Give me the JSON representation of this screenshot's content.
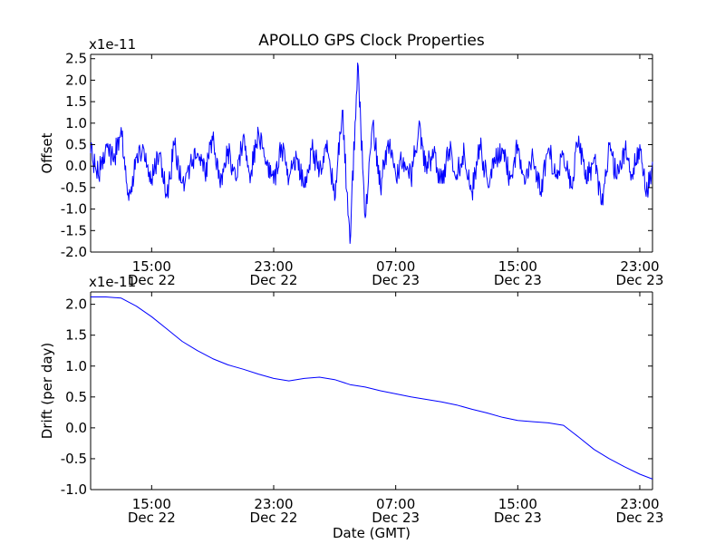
{
  "chart_data": [
    {
      "type": "line",
      "title": "APOLLO GPS Clock Properties",
      "ylabel": "Offset",
      "xlabel": "",
      "y_multiplier": "x1e-11",
      "ylim": [
        -2.0,
        2.6
      ],
      "yticks": [
        {
          "v": -2.0,
          "label": "-2.0"
        },
        {
          "v": -1.5,
          "label": "-1.5"
        },
        {
          "v": -1.0,
          "label": "-1.0"
        },
        {
          "v": -0.5,
          "label": "-0.5"
        },
        {
          "v": 0.0,
          "label": "0.0"
        },
        {
          "v": 0.5,
          "label": "0.5"
        },
        {
          "v": 1.0,
          "label": "1.0"
        },
        {
          "v": 1.5,
          "label": "1.5"
        },
        {
          "v": 2.0,
          "label": "2.0"
        },
        {
          "v": 2.5,
          "label": "2.5"
        }
      ],
      "xlim": [
        "2012-12-22 11:00",
        "2012-12-23 23:50"
      ],
      "xticks": [
        {
          "t": "2012-12-22 15:00",
          "time": "15:00",
          "date": "Dec 22"
        },
        {
          "t": "2012-12-22 23:00",
          "time": "23:00",
          "date": "Dec 22"
        },
        {
          "t": "2012-12-23 07:00",
          "time": "07:00",
          "date": "Dec 23"
        },
        {
          "t": "2012-12-23 15:00",
          "time": "15:00",
          "date": "Dec 23"
        },
        {
          "t": "2012-12-23 23:00",
          "time": "23:00",
          "date": "Dec 23"
        }
      ],
      "grid": false,
      "color": "#0000ff",
      "series": [
        {
          "x": [
            "2012-12-22 11:00",
            "2012-12-22 11:30",
            "2012-12-22 12:00",
            "2012-12-22 12:30",
            "2012-12-22 13:00",
            "2012-12-22 13:30",
            "2012-12-22 14:00",
            "2012-12-22 14:30",
            "2012-12-22 15:00",
            "2012-12-22 15:30",
            "2012-12-22 16:00",
            "2012-12-22 16:30",
            "2012-12-22 17:00",
            "2012-12-22 17:30",
            "2012-12-22 18:00",
            "2012-12-22 18:30",
            "2012-12-22 19:00",
            "2012-12-22 19:30",
            "2012-12-22 20:00",
            "2012-12-22 20:30",
            "2012-12-22 21:00",
            "2012-12-22 21:30",
            "2012-12-22 22:00",
            "2012-12-22 22:30",
            "2012-12-22 23:00",
            "2012-12-22 23:30",
            "2012-12-23 00:00",
            "2012-12-23 00:30",
            "2012-12-23 01:00",
            "2012-12-23 01:30",
            "2012-12-23 02:00",
            "2012-12-23 02:30",
            "2012-12-23 03:00",
            "2012-12-23 03:30",
            "2012-12-23 04:00",
            "2012-12-23 04:30",
            "2012-12-23 05:00",
            "2012-12-23 05:30",
            "2012-12-23 06:00",
            "2012-12-23 06:30",
            "2012-12-23 07:00",
            "2012-12-23 07:30",
            "2012-12-23 08:00",
            "2012-12-23 08:30",
            "2012-12-23 09:00",
            "2012-12-23 09:30",
            "2012-12-23 10:00",
            "2012-12-23 10:30",
            "2012-12-23 11:00",
            "2012-12-23 11:30",
            "2012-12-23 12:00",
            "2012-12-23 12:30",
            "2012-12-23 13:00",
            "2012-12-23 13:30",
            "2012-12-23 14:00",
            "2012-12-23 14:30",
            "2012-12-23 15:00",
            "2012-12-23 15:30",
            "2012-12-23 16:00",
            "2012-12-23 16:30",
            "2012-12-23 17:00",
            "2012-12-23 17:30",
            "2012-12-23 18:00",
            "2012-12-23 18:30",
            "2012-12-23 19:00",
            "2012-12-23 19:30",
            "2012-12-23 20:00",
            "2012-12-23 20:30",
            "2012-12-23 21:00",
            "2012-12-23 21:30",
            "2012-12-23 22:00",
            "2012-12-23 22:30",
            "2012-12-23 23:00",
            "2012-12-23 23:30",
            "2012-12-23 23:50"
          ],
          "values": [
            0.3,
            -0.2,
            0.5,
            0.1,
            0.9,
            -0.8,
            0.2,
            0.4,
            -0.3,
            0.3,
            -0.7,
            0.5,
            -0.4,
            0.0,
            0.3,
            -0.2,
            0.6,
            -0.5,
            0.4,
            -0.3,
            0.7,
            -0.2,
            0.8,
            0.1,
            -0.4,
            0.5,
            -0.3,
            0.2,
            -0.5,
            0.4,
            -0.1,
            0.6,
            -0.8,
            1.3,
            -1.8,
            2.4,
            -1.2,
            1.0,
            -0.5,
            0.6,
            -0.2,
            0.2,
            -0.3,
            0.9,
            0.0,
            0.3,
            -0.4,
            0.4,
            -0.2,
            0.3,
            -0.6,
            0.5,
            -0.3,
            0.1,
            0.4,
            -0.3,
            0.5,
            -0.4,
            0.2,
            -0.6,
            0.4,
            -0.2,
            0.3,
            -0.5,
            0.7,
            -0.4,
            0.2,
            -0.9,
            0.5,
            -0.3,
            0.4,
            -0.2,
            0.5,
            -0.6,
            0.1
          ]
        }
      ]
    },
    {
      "type": "line",
      "title": "",
      "ylabel": "Drift (per day)",
      "xlabel": "Date (GMT)",
      "y_multiplier": "x1e-11",
      "ylim": [
        -1.0,
        2.2
      ],
      "yticks": [
        {
          "v": -1.0,
          "label": "-1.0"
        },
        {
          "v": -0.5,
          "label": "-0.5"
        },
        {
          "v": 0.0,
          "label": "0.0"
        },
        {
          "v": 0.5,
          "label": "0.5"
        },
        {
          "v": 1.0,
          "label": "1.0"
        },
        {
          "v": 1.5,
          "label": "1.5"
        },
        {
          "v": 2.0,
          "label": "2.0"
        }
      ],
      "xlim": [
        "2012-12-22 11:00",
        "2012-12-23 23:50"
      ],
      "xticks": [
        {
          "t": "2012-12-22 15:00",
          "time": "15:00",
          "date": "Dec 22"
        },
        {
          "t": "2012-12-22 23:00",
          "time": "23:00",
          "date": "Dec 22"
        },
        {
          "t": "2012-12-23 07:00",
          "time": "07:00",
          "date": "Dec 23"
        },
        {
          "t": "2012-12-23 15:00",
          "time": "15:00",
          "date": "Dec 23"
        },
        {
          "t": "2012-12-23 23:00",
          "time": "23:00",
          "date": "Dec 23"
        }
      ],
      "grid": false,
      "color": "#0000ff",
      "series": [
        {
          "x": [
            "2012-12-22 11:00",
            "2012-12-22 12:00",
            "2012-12-22 13:00",
            "2012-12-22 14:00",
            "2012-12-22 15:00",
            "2012-12-22 16:00",
            "2012-12-22 17:00",
            "2012-12-22 18:00",
            "2012-12-22 19:00",
            "2012-12-22 20:00",
            "2012-12-22 21:00",
            "2012-12-22 22:00",
            "2012-12-22 23:00",
            "2012-12-23 00:00",
            "2012-12-23 01:00",
            "2012-12-23 02:00",
            "2012-12-23 03:00",
            "2012-12-23 04:00",
            "2012-12-23 05:00",
            "2012-12-23 06:00",
            "2012-12-23 07:00",
            "2012-12-23 08:00",
            "2012-12-23 09:00",
            "2012-12-23 10:00",
            "2012-12-23 11:00",
            "2012-12-23 12:00",
            "2012-12-23 13:00",
            "2012-12-23 14:00",
            "2012-12-23 15:00",
            "2012-12-23 16:00",
            "2012-12-23 17:00",
            "2012-12-23 18:00",
            "2012-12-23 19:00",
            "2012-12-23 20:00",
            "2012-12-23 21:00",
            "2012-12-23 22:00",
            "2012-12-23 23:00",
            "2012-12-23 23:50"
          ],
          "values": [
            2.12,
            2.12,
            2.1,
            1.97,
            1.8,
            1.6,
            1.4,
            1.25,
            1.12,
            1.02,
            0.95,
            0.87,
            0.8,
            0.76,
            0.8,
            0.82,
            0.78,
            0.7,
            0.66,
            0.6,
            0.55,
            0.5,
            0.46,
            0.42,
            0.37,
            0.3,
            0.24,
            0.17,
            0.12,
            0.1,
            0.08,
            0.04,
            -0.15,
            -0.35,
            -0.5,
            -0.63,
            -0.75,
            -0.83
          ]
        }
      ]
    }
  ]
}
